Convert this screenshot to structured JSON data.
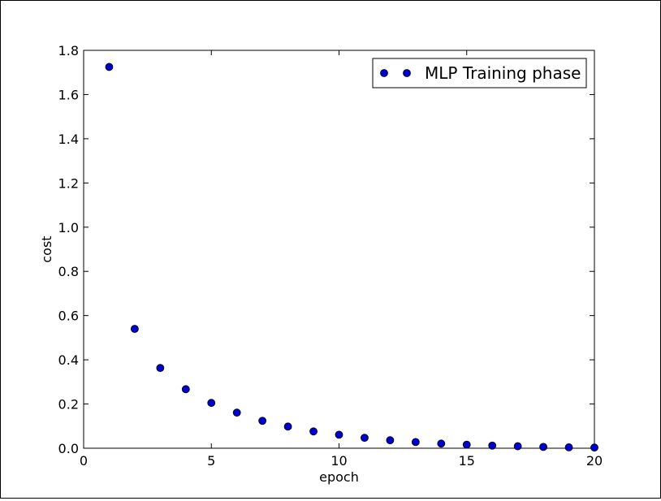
{
  "chart_data": {
    "type": "scatter",
    "title": "",
    "xlabel": "epoch",
    "ylabel": "cost",
    "xlim": [
      0,
      20
    ],
    "ylim": [
      0,
      1.8
    ],
    "xticks": [
      "0",
      "5",
      "10",
      "15",
      "20"
    ],
    "yticks": [
      "0.0",
      "0.2",
      "0.4",
      "0.6",
      "0.8",
      "1.0",
      "1.2",
      "1.4",
      "1.6",
      "1.8"
    ],
    "grid": false,
    "legend": {
      "position": "top-right"
    },
    "series": [
      {
        "name": "MLP Training phase",
        "color": "#0000cc",
        "marker": "circle",
        "x": [
          1,
          2,
          3,
          4,
          5,
          6,
          7,
          8,
          9,
          10,
          11,
          12,
          13,
          14,
          15,
          16,
          17,
          18,
          19,
          20
        ],
        "y": [
          1.725,
          0.54,
          0.363,
          0.267,
          0.205,
          0.161,
          0.124,
          0.098,
          0.076,
          0.061,
          0.047,
          0.036,
          0.028,
          0.021,
          0.016,
          0.012,
          0.009,
          0.006,
          0.004,
          0.003
        ]
      }
    ]
  }
}
